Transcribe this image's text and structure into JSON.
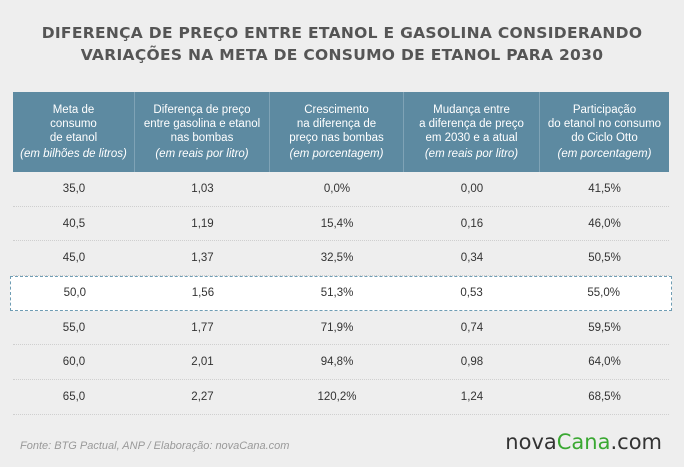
{
  "title": {
    "line1": "DIFERENÇA DE PREÇO ENTRE ETANOL E GASOLINA CONSIDERANDO",
    "line2": "VARIAÇÕES NA META DE CONSUMO DE ETANOL PARA 2030"
  },
  "columns": [
    {
      "lines": [
        "Meta de",
        "consumo",
        "de etanol"
      ],
      "unit": "(em bilhões de litros)"
    },
    {
      "lines": [
        "Diferença de preço",
        "entre gasolina e etanol",
        "nas bombas"
      ],
      "unit": "(em reais por litro)"
    },
    {
      "lines": [
        "Crescimento",
        "na diferença de",
        "preço nas bombas"
      ],
      "unit": "(em porcentagem)"
    },
    {
      "lines": [
        "Mudança entre",
        "a diferença de preço",
        "em 2030 e a atual"
      ],
      "unit": "(em reais por litro)"
    },
    {
      "lines": [
        "Participação",
        "do etanol no consumo",
        "do Ciclo Otto"
      ],
      "unit": "(em porcentagem)"
    }
  ],
  "rows": [
    [
      "35,0",
      "1,03",
      "0,0%",
      "0,00",
      "41,5%"
    ],
    [
      "40,5",
      "1,19",
      "15,4%",
      "0,16",
      "46,0%"
    ],
    [
      "45,0",
      "1,37",
      "32,5%",
      "0,34",
      "50,5%"
    ],
    [
      "50,0",
      "1,56",
      "51,3%",
      "0,53",
      "55,0%"
    ],
    [
      "55,0",
      "1,77",
      "71,9%",
      "0,74",
      "59,5%"
    ],
    [
      "60,0",
      "2,01",
      "94,8%",
      "0,98",
      "64,0%"
    ],
    [
      "65,0",
      "2,27",
      "120,2%",
      "1,24",
      "68,5%"
    ]
  ],
  "highlighted_row": 3,
  "footer": {
    "source": "Fonte: BTG Pactual, ANP / Elaboração: novaCana.com",
    "logo_part1": "nova",
    "logo_part2": "Cana",
    "logo_part3": ".com"
  },
  "colors": {
    "header_bg": "#5d8aa1",
    "highlight_border": "#6f9db4",
    "brand_green": "#3aa832",
    "page_bg": "#eeeeee"
  }
}
